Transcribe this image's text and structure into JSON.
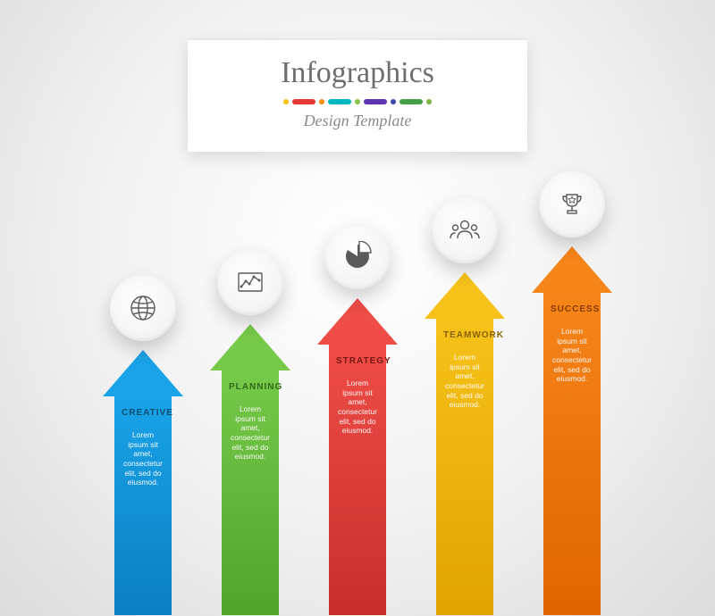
{
  "header": {
    "title": "Infographics",
    "subtitle": "Design Template",
    "dots": [
      {
        "type": "dot",
        "color": "#f4c20d"
      },
      {
        "type": "bar",
        "color": "#e53935"
      },
      {
        "type": "dot",
        "color": "#fb8c00"
      },
      {
        "type": "bar",
        "color": "#00b8c4"
      },
      {
        "type": "dot",
        "color": "#8bc34a"
      },
      {
        "type": "bar",
        "color": "#5e35b1"
      },
      {
        "type": "dot",
        "color": "#3949ab"
      },
      {
        "type": "bar",
        "color": "#43a047"
      },
      {
        "type": "dot",
        "color": "#7cb342"
      }
    ]
  },
  "layout": {
    "arrow_top_start": 392,
    "arrow_top_step": -29,
    "arrow_left_start": 115,
    "arrow_left_step": 120,
    "arrow_width": 90,
    "arrow_head_height": 52,
    "arrow_body_width": 64,
    "circle_diameter": 74,
    "circle_gap_above_arrow": 10,
    "circle_pie_filled": true
  },
  "items": [
    {
      "label": "CREATIVE",
      "icon": "globe-icon",
      "arrow_color": "#1aa3e8",
      "arrow_gradient_bottom": "#0b7fc2",
      "label_color": "#0a4f73",
      "description": "Lorem ipsum sit amet, consectetur elit, sed do eiusmod."
    },
    {
      "label": "PLANNING",
      "icon": "chart-icon",
      "arrow_color": "#77c94a",
      "arrow_gradient_bottom": "#4fa52a",
      "label_color": "#2f6b16",
      "description": "Lorem ipsum sit amet, consectetur elit, sed do eiusmod."
    },
    {
      "label": "STRATEGY",
      "icon": "pie-icon",
      "arrow_color": "#ef4d47",
      "arrow_gradient_bottom": "#c82e2a",
      "label_color": "#7a1714",
      "description": "Lorem ipsum sit amet, consectetur elit, sed do eiusmod."
    },
    {
      "label": "TEAMWORK",
      "icon": "team-icon",
      "arrow_color": "#f6c21a",
      "arrow_gradient_bottom": "#e0a400",
      "label_color": "#8a6200",
      "description": "Lorem ipsum sit amet, consectetur elit, sed do eiusmod."
    },
    {
      "label": "SUCCESS",
      "icon": "trophy-icon",
      "arrow_color": "#f6851a",
      "arrow_gradient_bottom": "#e06500",
      "label_color": "#8a3b00",
      "description": "Lorem ipsum sit amet, consectetur elit, sed do eiusmod."
    }
  ]
}
